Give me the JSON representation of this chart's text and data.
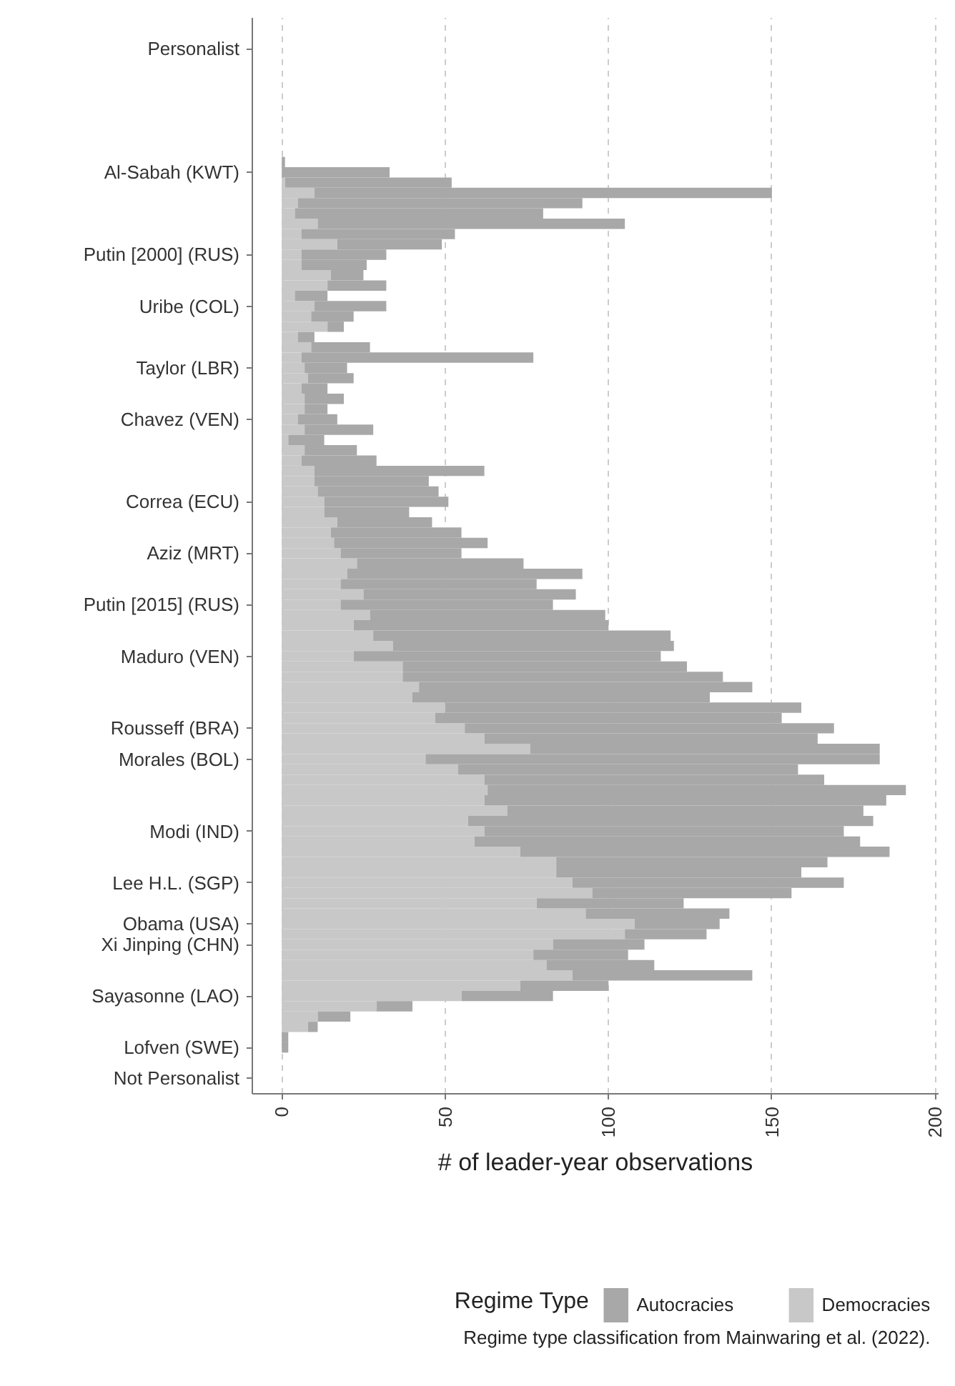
{
  "chart_data": {
    "type": "bar",
    "orientation": "horizontal",
    "stacked": true,
    "xlabel": "# of leader-year observations",
    "legend_title": "Regime Type",
    "annotations": [
      "Regime type classification from Mainwaring et al. (2022)."
    ],
    "categories": [
      "Personalist",
      null,
      null,
      null,
      null,
      null,
      null,
      null,
      null,
      null,
      null,
      null,
      "Al-Sabah (KWT)",
      null,
      null,
      null,
      null,
      null,
      null,
      null,
      "Putin [2000] (RUS)",
      null,
      null,
      null,
      null,
      "Uribe (COL)",
      null,
      null,
      null,
      null,
      null,
      "Taylor (LBR)",
      null,
      null,
      null,
      null,
      "Chavez (VEN)",
      null,
      null,
      null,
      null,
      null,
      null,
      null,
      "Correa (ECU)",
      null,
      null,
      null,
      null,
      "Aziz (MRT)",
      null,
      null,
      null,
      null,
      "Putin [2015] (RUS)",
      null,
      null,
      null,
      null,
      "Maduro (VEN)",
      null,
      null,
      null,
      null,
      null,
      null,
      "Rousseff (BRA)",
      null,
      null,
      "Morales (BOL)",
      null,
      null,
      null,
      null,
      null,
      null,
      "Modi (IND)",
      null,
      null,
      null,
      null,
      "Lee H.L. (SGP)",
      null,
      null,
      null,
      "Obama (USA)",
      null,
      "Xi Jinping (CHN)",
      null,
      null,
      null,
      null,
      "Sayasonne (LAO)",
      null,
      null,
      null,
      null,
      "Lofven (SWE)",
      null,
      null,
      "Not Personalist"
    ],
    "series": [
      {
        "name": "Democracies",
        "color": "#c8c8c8",
        "values": [
          null,
          null,
          null,
          null,
          null,
          null,
          null,
          null,
          null,
          null,
          null,
          0,
          0,
          1,
          10,
          5,
          4,
          11,
          6,
          17,
          6,
          6,
          15,
          14,
          4,
          10,
          9,
          14,
          5,
          9,
          6,
          7,
          8,
          6,
          7,
          7,
          5,
          7,
          2,
          7,
          6,
          10,
          10,
          11,
          13,
          13,
          17,
          15,
          16,
          18,
          23,
          20,
          18,
          25,
          18,
          27,
          22,
          28,
          34,
          22,
          37,
          37,
          42,
          40,
          50,
          47,
          56,
          62,
          76,
          44,
          54,
          62,
          63,
          62,
          69,
          57,
          62,
          59,
          73,
          84,
          84,
          89,
          95,
          78,
          93,
          108,
          105,
          83,
          77,
          81,
          89,
          73,
          55,
          29,
          11,
          8,
          0,
          0,
          null,
          null,
          null
        ]
      },
      {
        "name": "Autocracies",
        "color": "#a8a8a8",
        "values": [
          null,
          null,
          null,
          null,
          null,
          null,
          null,
          null,
          null,
          null,
          null,
          1,
          33,
          51,
          140,
          87,
          76,
          94,
          47,
          32,
          26,
          20,
          10,
          18,
          10,
          22,
          13,
          5,
          5,
          18,
          71,
          13,
          14,
          8,
          12,
          7,
          12,
          21,
          11,
          16,
          23,
          52,
          35,
          37,
          38,
          26,
          29,
          40,
          47,
          37,
          51,
          72,
          60,
          65,
          65,
          72,
          78,
          91,
          86,
          94,
          87,
          98,
          102,
          91,
          109,
          106,
          113,
          102,
          107,
          139,
          104,
          104,
          128,
          123,
          109,
          124,
          110,
          118,
          113,
          83,
          75,
          83,
          61,
          45,
          44,
          26,
          25,
          28,
          29,
          33,
          55,
          27,
          28,
          11,
          10,
          3,
          2,
          2,
          null,
          null,
          null
        ]
      }
    ],
    "xlim": [
      -9,
      201
    ],
    "xticks": [
      0,
      50,
      100,
      150,
      200
    ],
    "grid": "x",
    "legend": "bottom"
  }
}
